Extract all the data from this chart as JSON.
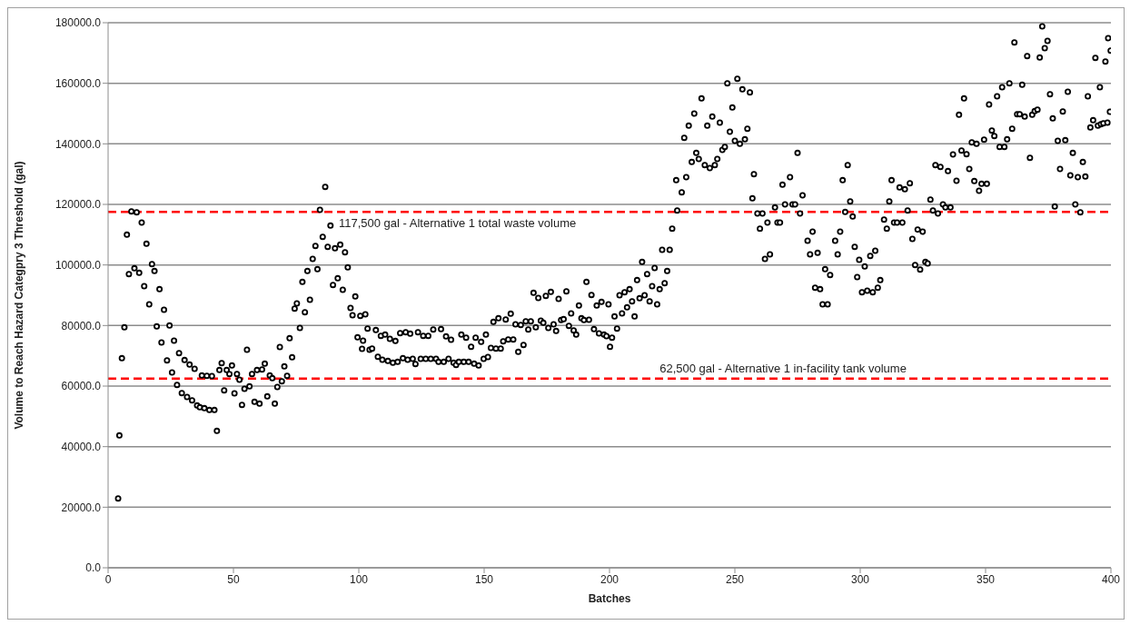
{
  "chart_data": {
    "type": "scatter",
    "xlabel": "Batches",
    "ylabel": "Volume to Reach Hazard  Categpry 3 Threshold  (gal)",
    "x": [
      4,
      4.5,
      5.5,
      6.5,
      7.5,
      8.3,
      9.3,
      10.5,
      11.4,
      12.4,
      13.4,
      14.4,
      15.3,
      16.4,
      17.5,
      18.5,
      19.4,
      20.5,
      21.3,
      22.3,
      23.5,
      24.5,
      25.5,
      26.3,
      27.5,
      28.3,
      29.4,
      30.5,
      31.5,
      32.5,
      33.5,
      34.5,
      35.5,
      36.6,
      37.4,
      38.4,
      39.4,
      40.4,
      41.4,
      42.4,
      43.4,
      44.4,
      45.3,
      46.3,
      47.3,
      48.4,
      49.4,
      50.4,
      51.4,
      52.4,
      53.4,
      54.4,
      55.4,
      56.4,
      57.4,
      58.4,
      59.4,
      60.4,
      61.4,
      62.5,
      63.5,
      64.5,
      65.5,
      66.5,
      67.5,
      68.5,
      69.3,
      70.3,
      71.4,
      72.4,
      73.4,
      74.4,
      75.3,
      76.5,
      77.5,
      78.5,
      79.5,
      80.5,
      81.6,
      82.7,
      83.5,
      84.5,
      85.6,
      86.6,
      87.6,
      88.7,
      89.7,
      90.5,
      91.6,
      92.6,
      93.6,
      94.5,
      95.6,
      96.7,
      97.5,
      98.6,
      99.5,
      100.6,
      101.3,
      101.7,
      102.6,
      103.5,
      104.3,
      105.3,
      106.8,
      107.6,
      108.8,
      109.4,
      110.5,
      111.6,
      112.4,
      113.6,
      114.6,
      115.5,
      116.5,
      117.6,
      118.7,
      119.5,
      120.5,
      121.5,
      122.6,
      123.6,
      124.7,
      125.7,
      126.7,
      127.7,
      128.7,
      129.7,
      130.8,
      131.8,
      132.8,
      133.9,
      134.8,
      135.8,
      136.8,
      137.8,
      138.8,
      139.9,
      140.9,
      141.9,
      142.8,
      143.8,
      144.8,
      146,
      146.6,
      147.8,
      148.8,
      149.8,
      150.7,
      151.5,
      152.7,
      153.7,
      154.7,
      155.7,
      156.6,
      157.6,
      158.6,
      159.6,
      160.6,
      161.6,
      162.5,
      163.6,
      164.6,
      165.7,
      166.6,
      167.6,
      168.6,
      169.7,
      170.6,
      171.6,
      172.6,
      173.6,
      174.6,
      175.6,
      176.6,
      177.7,
      178.7,
      179.7,
      180.7,
      181.7,
      182.8,
      183.8,
      184.7,
      185.7,
      186.7,
      187.8,
      188.8,
      189.8,
      190.8,
      191.8,
      192.8,
      193.8,
      194.9,
      195.8,
      196.8,
      197.8,
      198.8,
      199.6,
      200.2,
      201,
      202,
      203,
      204,
      205,
      206,
      207,
      208,
      209,
      210,
      211,
      212,
      213,
      214,
      215,
      216,
      217,
      218,
      219,
      220,
      221,
      222,
      223,
      224,
      225,
      226.6,
      227,
      228.8,
      229.8,
      230.6,
      231.6,
      232.8,
      233.8,
      234.6,
      235.6,
      236.7,
      238,
      239,
      240,
      241,
      242,
      243,
      244,
      245,
      246,
      247,
      248,
      249,
      250,
      251,
      252,
      253,
      254,
      255,
      256,
      257,
      257.6,
      259,
      260,
      261,
      262,
      263,
      264,
      266,
      267,
      268,
      269,
      270,
      272,
      273,
      274,
      275,
      276,
      277,
      279,
      280,
      281,
      282,
      283,
      284,
      285,
      286,
      287,
      288,
      290,
      291,
      292,
      293,
      294,
      295,
      296,
      297,
      297.8,
      298.8,
      299.6,
      300.7,
      301.8,
      302.8,
      304,
      305,
      306,
      307,
      308,
      309.5,
      310.6,
      311.6,
      312.5,
      313.5,
      314.7,
      315.7,
      316.8,
      317.8,
      318.9,
      319.8,
      320.8,
      321.9,
      322.9,
      323.9,
      324.9,
      326,
      326.9,
      328,
      329,
      330,
      331,
      332,
      333,
      334,
      335,
      336,
      337,
      338.4,
      339.4,
      340.4,
      341.4,
      342.4,
      343.5,
      344.5,
      345.5,
      346.4,
      347.4,
      348.4,
      349.4,
      350.5,
      351.4,
      352.5,
      353.5,
      354.6,
      355.6,
      356.6,
      357.5,
      358.6,
      359.5,
      360.6,
      361.5,
      362.6,
      363.6,
      364.6,
      365.6,
      366.6,
      367.7,
      368.6,
      369.6,
      370.7,
      371.6,
      372.6,
      373.6,
      374.7,
      375.7,
      376.8,
      377.6,
      378.8,
      379.7,
      380.8,
      381.8,
      382.8,
      383.8,
      384.8,
      385.8,
      386.8,
      387.8,
      388.8,
      389.8,
      390.8,
      391.8,
      392.9,
      393.8,
      394.8,
      395.6,
      396,
      397,
      397.8,
      398.6,
      399.6,
      398.9,
      399.9
    ],
    "values": [
      22900,
      43700,
      69200,
      79400,
      110000,
      97000,
      117700,
      98900,
      117400,
      97400,
      114000,
      93000,
      107000,
      87000,
      100300,
      98000,
      79700,
      92000,
      74400,
      85200,
      68500,
      80000,
      64500,
      75000,
      60400,
      70900,
      57700,
      68600,
      56400,
      67100,
      55300,
      65700,
      53600,
      53000,
      63500,
      52700,
      63400,
      52100,
      63300,
      52100,
      45200,
      65300,
      67600,
      58600,
      65300,
      64000,
      66800,
      57600,
      64000,
      62100,
      53800,
      59100,
      72000,
      59900,
      64000,
      54800,
      65300,
      54200,
      65500,
      67400,
      56600,
      63500,
      62600,
      54200,
      59700,
      72900,
      61600,
      66500,
      63400,
      75800,
      69500,
      85600,
      87300,
      79200,
      94400,
      84400,
      98000,
      88500,
      102000,
      106300,
      98600,
      118200,
      109300,
      125800,
      106000,
      113000,
      93400,
      105500,
      95600,
      106700,
      91800,
      104200,
      99200,
      85800,
      83400,
      89600,
      76100,
      83200,
      72300,
      75000,
      83700,
      79000,
      72000,
      72400,
      78500,
      69700,
      76600,
      68700,
      77000,
      68300,
      75600,
      67700,
      74900,
      68000,
      77500,
      69200,
      77800,
      68700,
      77300,
      69000,
      67300,
      77800,
      69000,
      76600,
      69000,
      76600,
      69000,
      78700,
      69000,
      68000,
      78800,
      68000,
      76400,
      69000,
      75300,
      67700,
      67000,
      68000,
      77000,
      68000,
      76000,
      68000,
      73000,
      67400,
      76000,
      66800,
      74600,
      69000,
      77000,
      69600,
      72600,
      81200,
      72400,
      82400,
      72400,
      74800,
      82000,
      75400,
      83900,
      75400,
      80400,
      71300,
      80200,
      73600,
      81400,
      78700,
      81400,
      90800,
      79400,
      89100,
      81600,
      80900,
      89800,
      79200,
      91100,
      80400,
      78200,
      88800,
      81800,
      82100,
      91300,
      79900,
      84000,
      78400,
      77000,
      86600,
      82400,
      81800,
      94400,
      81900,
      90100,
      78800,
      86600,
      77400,
      87800,
      77000,
      76500,
      87000,
      73000,
      76000,
      83000,
      79000,
      90000,
      84000,
      91000,
      86000,
      92000,
      88000,
      83000,
      95000,
      89000,
      101000,
      90000,
      97000,
      88000,
      93000,
      99000,
      87000,
      92000,
      105000,
      94000,
      98000,
      105000,
      112000,
      128000,
      118000,
      124000,
      142000,
      129000,
      146000,
      134000,
      150000,
      137000,
      135000,
      155000,
      133000,
      146000,
      132000,
      149000,
      133000,
      135000,
      147000,
      138000,
      139000,
      160000,
      144000,
      152000,
      141000,
      161500,
      140000,
      158000,
      141500,
      145000,
      157000,
      122000,
      130000,
      117000,
      112000,
      117000,
      102000,
      114000,
      103500,
      119000,
      114000,
      114000,
      126500,
      120000,
      129000,
      120000,
      120000,
      137000,
      117000,
      123000,
      108000,
      103500,
      111000,
      92500,
      104000,
      92000,
      87000,
      98600,
      87000,
      96700,
      108000,
      103500,
      111000,
      128000,
      117500,
      133000,
      121000,
      116000,
      106000,
      96000,
      101700,
      91000,
      99500,
      91500,
      103000,
      91000,
      104700,
      92500,
      95000,
      115000,
      112000,
      121000,
      128000,
      114000,
      114000,
      125600,
      114000,
      125000,
      118000,
      127000,
      108600,
      100000,
      111700,
      98500,
      111000,
      101000,
      100500,
      121600,
      118000,
      133000,
      117000,
      132400,
      120000,
      119000,
      131000,
      119000,
      136500,
      127800,
      149600,
      137800,
      155000,
      136600,
      131700,
      140500,
      127700,
      140000,
      124500,
      126800,
      141400,
      126800,
      153000,
      144400,
      142600,
      155700,
      139000,
      158700,
      139000,
      141500,
      160000,
      145000,
      173500,
      149800,
      149800,
      159500,
      149000,
      169000,
      135400,
      149600,
      150800,
      151300,
      168500,
      178800,
      171600,
      174000,
      156400,
      148400,
      119300,
      141000,
      131700,
      150700,
      141200,
      157200,
      129600,
      137000,
      120000,
      129000,
      117400,
      134000,
      129200,
      155700,
      145400,
      147800,
      168400,
      146000,
      158700,
      146500,
      146800,
      167200,
      147000,
      150600,
      174900,
      170800
    ],
    "color": "#000000",
    "marker": "circle",
    "xlim": [
      0,
      400
    ],
    "xticks": [
      0,
      50,
      100,
      150,
      200,
      250,
      300,
      350,
      400
    ],
    "ylim": [
      0,
      180000
    ],
    "yticks": [
      {
        "value": 0,
        "label": "0.0"
      },
      {
        "value": 20000,
        "label": "20000.0"
      },
      {
        "value": 40000,
        "label": "40000.0"
      },
      {
        "value": 60000,
        "label": "60000.0"
      },
      {
        "value": 80000,
        "label": "80000.0"
      },
      {
        "value": 100000,
        "label": "100000.0"
      },
      {
        "value": 120000,
        "label": "120000.0"
      },
      {
        "value": 140000,
        "label": "140000.0"
      },
      {
        "value": 160000,
        "label": "160000.0"
      },
      {
        "value": 180000,
        "label": "180000.0"
      }
    ],
    "grid": "y",
    "ref_lines": [
      {
        "axis": "y",
        "value": 117500,
        "label": "117,500 gal - Alternative 1 total waste volume",
        "color": "#ff0000",
        "line_style": "dashed"
      },
      {
        "axis": "y",
        "value": 62500,
        "label": "62,500 gal - Alternative 1 in-facility tank volume",
        "color": "#ff0000",
        "line_style": "dashed"
      }
    ]
  }
}
